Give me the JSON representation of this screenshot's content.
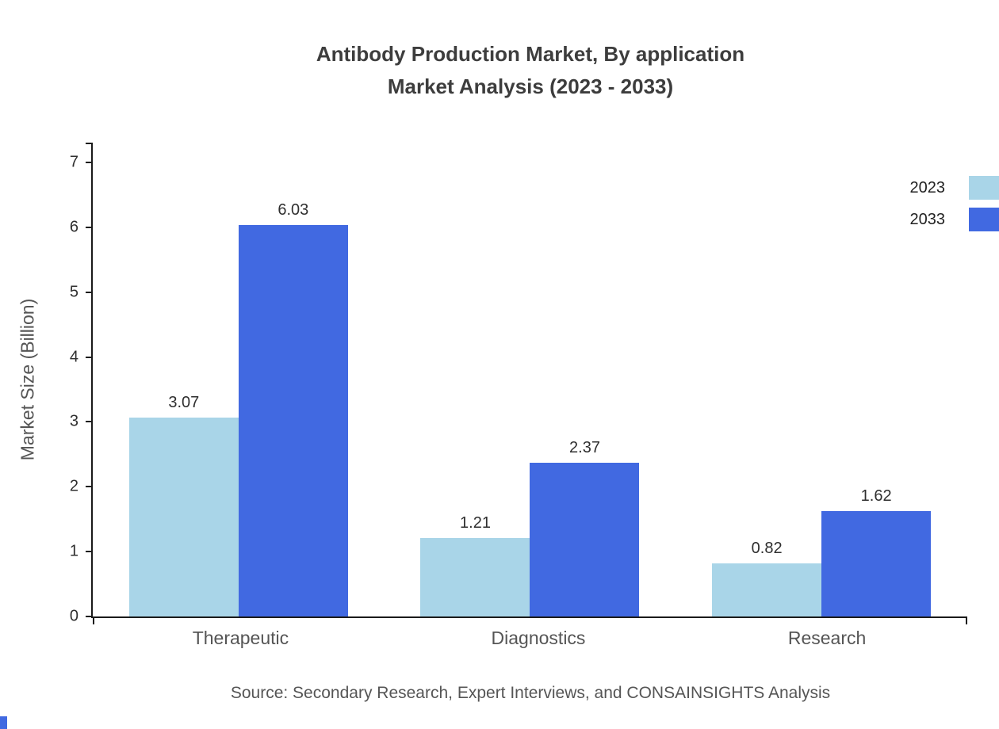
{
  "title": {
    "line1": "Antibody Production Market, By application",
    "line2": "Market Analysis (2023 - 2033)"
  },
  "source": "Source: Secondary Research, Expert Interviews, and CONSAINSIGHTS Analysis",
  "colors": {
    "series_2023": "#a9d5e8",
    "series_2033": "#4169e1",
    "axis": "#1a1a1a"
  },
  "legend": [
    {
      "label": "2023",
      "color": "#a9d5e8"
    },
    {
      "label": "2033",
      "color": "#4169e1"
    }
  ],
  "chart_data": {
    "type": "bar",
    "categories": [
      "Therapeutic",
      "Diagnostics",
      "Research"
    ],
    "series": [
      {
        "name": "2023",
        "color": "#a9d5e8",
        "values": [
          3.07,
          1.21,
          0.82
        ]
      },
      {
        "name": "2033",
        "color": "#4169e1",
        "values": [
          6.03,
          2.37,
          1.62
        ]
      }
    ],
    "title": "Antibody Production Market, By application Market Analysis (2023 - 2033)",
    "xlabel": "",
    "ylabel": "Market Size (Billion)",
    "ylim": [
      0,
      7
    ],
    "yticks": [
      0,
      1,
      2,
      3,
      4,
      5,
      6,
      7
    ],
    "grid": false,
    "legend_position": "top-right",
    "value_labels": true
  }
}
